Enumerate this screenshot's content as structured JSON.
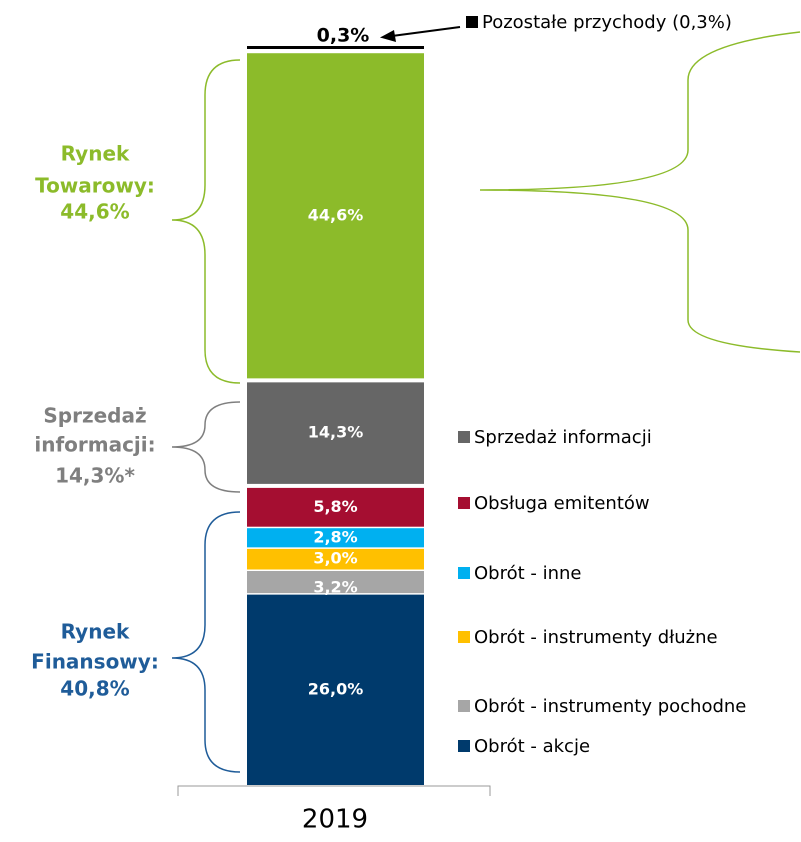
{
  "chart_data": {
    "type": "bar",
    "stacked": true,
    "categories": [
      "2019"
    ],
    "ylim": [
      0,
      100
    ],
    "series": [
      {
        "name": "Obrót - akcje",
        "color": "#003a6c",
        "values": [
          26.0
        ],
        "value_labels": [
          "26,0%"
        ]
      },
      {
        "name": "Obrót - instrumenty pochodne",
        "color": "#a6a6a6",
        "values": [
          3.2
        ],
        "value_labels": [
          "3,2%"
        ]
      },
      {
        "name": "Obrót - instrumenty dłużne",
        "color": "#ffc000",
        "values": [
          3.0
        ],
        "value_labels": [
          "3,0%"
        ]
      },
      {
        "name": "Obrót - inne",
        "color": "#00b0f0",
        "values": [
          2.8
        ],
        "value_labels": [
          "2,8%"
        ]
      },
      {
        "name": "Obsługa emitentów",
        "color": "#a50e31",
        "values": [
          5.8
        ],
        "value_labels": [
          "5,8%"
        ]
      },
      {
        "name": "Sprzedaż informacji",
        "color": "#666666",
        "values": [
          14.3
        ],
        "value_labels": [
          "14,3%"
        ]
      },
      {
        "name": null,
        "color": "#8cbb2a",
        "values": [
          44.6
        ],
        "value_labels": [
          "44,6%"
        ]
      },
      {
        "name": "Pozostałe przychody (0,3%)",
        "color": "#000000",
        "values": [
          0.3
        ],
        "value_labels": [
          "0,3%"
        ]
      }
    ],
    "annotations": [
      {
        "lines": [
          "Rynek",
          "Towarowy:",
          "44,6%"
        ],
        "color": "#8cbb2a"
      },
      {
        "lines": [
          "Sprzedaż",
          "informacji:",
          "14,3%*"
        ],
        "color": "#7f7f7f"
      },
      {
        "lines": [
          "Rynek",
          "Finansowy:",
          "40,8%"
        ],
        "color": "#1f5c99"
      }
    ]
  }
}
